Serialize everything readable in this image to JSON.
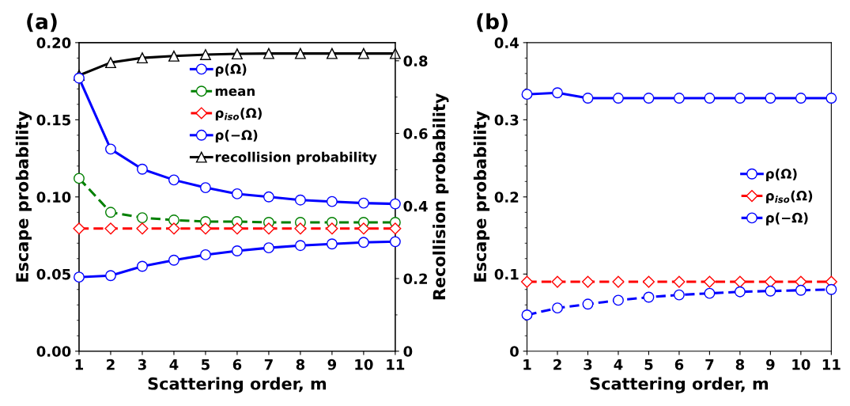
{
  "chart_data": [
    {
      "type": "line",
      "title": "(a)",
      "xlabel": "Scattering order, m",
      "ylabel": "Escape probability",
      "y2label": "Recollision probability",
      "x": [
        1,
        2,
        3,
        4,
        5,
        6,
        7,
        8,
        9,
        10,
        11
      ],
      "xlim": [
        1,
        11
      ],
      "xticks": [
        1,
        2,
        3,
        4,
        5,
        6,
        7,
        8,
        9,
        10,
        11
      ],
      "ylim": [
        0,
        0.2
      ],
      "yticks": [
        {
          "value": 0,
          "label": "0.00"
        },
        {
          "value": 0.05,
          "label": "0.05"
        },
        {
          "value": 0.1,
          "label": "0.10"
        },
        {
          "value": 0.15,
          "label": "0.15"
        },
        {
          "value": 0.2,
          "label": "0.20"
        }
      ],
      "y2lim": [
        0,
        0.85
      ],
      "y2ticks": [
        0,
        0.2,
        0.4,
        0.6,
        0.8
      ],
      "legend": "top right",
      "grid": false,
      "series": [
        {
          "name": "ρ(Ω)",
          "color": "#0000ff",
          "marker": "circle",
          "line_style": "solid",
          "values": [
            0.177,
            0.131,
            0.118,
            0.111,
            0.106,
            0.102,
            0.1,
            0.098,
            0.097,
            0.096,
            0.0955
          ]
        },
        {
          "name": "mean",
          "color": "#008000",
          "marker": "circle",
          "line_style": "dashed",
          "values": [
            0.112,
            0.09,
            0.0865,
            0.085,
            0.084,
            0.084,
            0.0835,
            0.0835,
            0.0835,
            0.0835,
            0.0835
          ]
        },
        {
          "name": "ρ$_{iso}$(Ω)",
          "color": "#ff0000",
          "marker": "diamond",
          "line_style": "dashed",
          "values": [
            0.0795,
            0.0795,
            0.0795,
            0.0795,
            0.0795,
            0.0795,
            0.0795,
            0.0795,
            0.0795,
            0.0795,
            0.0795
          ]
        },
        {
          "name": "ρ(−Ω)",
          "color": "#0000ff",
          "marker": "circle",
          "line_style": "solid",
          "values": [
            0.048,
            0.049,
            0.055,
            0.059,
            0.0625,
            0.065,
            0.067,
            0.0685,
            0.0695,
            0.0705,
            0.071
          ]
        },
        {
          "name": "recollision probability",
          "color": "#000000",
          "marker": "triangle",
          "line_style": "solid",
          "axis": "y2",
          "values": [
            0.76,
            0.795,
            0.808,
            0.813,
            0.817,
            0.819,
            0.82,
            0.82,
            0.82,
            0.82,
            0.82
          ]
        }
      ]
    },
    {
      "type": "line",
      "title": "(b)",
      "xlabel": "Scattering order, m",
      "ylabel": "Escape probability",
      "x": [
        1,
        2,
        3,
        4,
        5,
        6,
        7,
        8,
        9,
        10,
        11
      ],
      "xlim": [
        1,
        11
      ],
      "xticks": [
        1,
        2,
        3,
        4,
        5,
        6,
        7,
        8,
        9,
        10,
        11
      ],
      "ylim": [
        0,
        0.4
      ],
      "yticks": [
        0,
        0.1,
        0.2,
        0.3,
        0.4
      ],
      "legend": "right",
      "grid": false,
      "series": [
        {
          "name": "ρ(Ω)",
          "color": "#0000ff",
          "marker": "circle",
          "line_style": "solid",
          "values": [
            0.333,
            0.335,
            0.328,
            0.328,
            0.328,
            0.328,
            0.328,
            0.328,
            0.328,
            0.328,
            0.328
          ]
        },
        {
          "name": "ρ$_{iso}$(Ω)",
          "color": "#ff0000",
          "marker": "diamond",
          "line_style": "dashed",
          "values": [
            0.09,
            0.09,
            0.09,
            0.09,
            0.09,
            0.09,
            0.09,
            0.09,
            0.09,
            0.09,
            0.09
          ]
        },
        {
          "name": "ρ(−Ω)",
          "color": "#0000ff",
          "marker": "circle",
          "line_style": "dashed",
          "values": [
            0.047,
            0.056,
            0.061,
            0.066,
            0.07,
            0.073,
            0.075,
            0.077,
            0.078,
            0.079,
            0.08
          ]
        }
      ]
    }
  ]
}
